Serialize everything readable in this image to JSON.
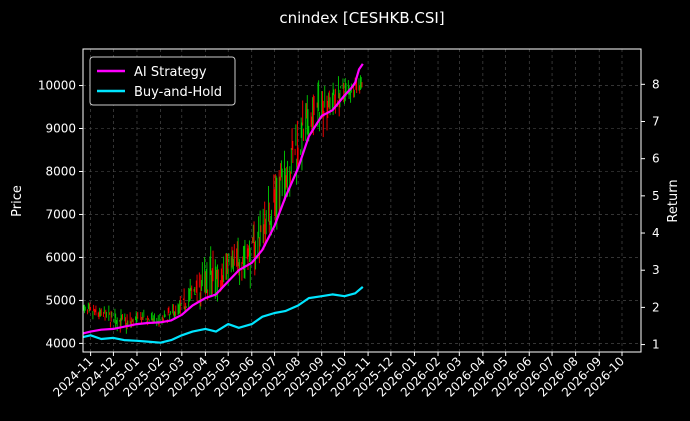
{
  "chart_data": {
    "type": "line",
    "title": "cnindex [CESHKB.CSI]",
    "ylabel_left": "Price",
    "ylabel_right": "Return",
    "xlabel": "",
    "grid": true,
    "legend_position": "top-left",
    "ylim_left": [
      3800,
      10850
    ],
    "ylim_right": [
      0.8,
      8.95
    ],
    "y_ticks_left": [
      4000,
      5000,
      6000,
      7000,
      8000,
      9000,
      10000
    ],
    "y_ticks_right": [
      1,
      2,
      3,
      4,
      5,
      6,
      7,
      8
    ],
    "x_ticks": [
      "2024-11",
      "2024-12",
      "2025-01",
      "2025-02",
      "2025-03",
      "2025-04",
      "2025-05",
      "2025-06",
      "2025-07",
      "2025-08",
      "2025-09",
      "2025-10",
      "2025-11",
      "2025-12",
      "2026-01",
      "2026-02",
      "2026-03",
      "2026-04",
      "2026-05",
      "2026-06",
      "2026-07",
      "2026-08",
      "2026-09",
      "2026-10"
    ],
    "xlim": [
      "2024-10-22",
      "2026-10-26"
    ],
    "series": [
      {
        "name": "AI Strategy",
        "color": "#ff00ff",
        "axis": "right",
        "points": [
          [
            "2024-10-22",
            1.3
          ],
          [
            "2024-11-01",
            1.35
          ],
          [
            "2024-11-15",
            1.4
          ],
          [
            "2024-12-01",
            1.42
          ],
          [
            "2024-12-15",
            1.48
          ],
          [
            "2025-01-01",
            1.55
          ],
          [
            "2025-01-15",
            1.58
          ],
          [
            "2025-02-01",
            1.6
          ],
          [
            "2025-02-15",
            1.65
          ],
          [
            "2025-03-01",
            1.8
          ],
          [
            "2025-03-15",
            2.05
          ],
          [
            "2025-04-01",
            2.25
          ],
          [
            "2025-04-15",
            2.35
          ],
          [
            "2025-05-01",
            2.7
          ],
          [
            "2025-05-15",
            3.0
          ],
          [
            "2025-06-01",
            3.2
          ],
          [
            "2025-06-15",
            3.55
          ],
          [
            "2025-07-01",
            4.2
          ],
          [
            "2025-07-15",
            4.95
          ],
          [
            "2025-08-01",
            5.75
          ],
          [
            "2025-08-15",
            6.6
          ],
          [
            "2025-09-01",
            7.15
          ],
          [
            "2025-09-15",
            7.3
          ],
          [
            "2025-10-01",
            7.7
          ],
          [
            "2025-10-10",
            7.9
          ],
          [
            "2025-10-15",
            8.05
          ],
          [
            "2025-10-20",
            8.4
          ],
          [
            "2025-10-25",
            8.55
          ]
        ]
      },
      {
        "name": "Buy-and-Hold",
        "color": "#00e5ff",
        "axis": "right",
        "points": [
          [
            "2024-10-22",
            1.2
          ],
          [
            "2024-11-01",
            1.25
          ],
          [
            "2024-11-15",
            1.15
          ],
          [
            "2024-12-01",
            1.18
          ],
          [
            "2024-12-15",
            1.12
          ],
          [
            "2025-01-01",
            1.1
          ],
          [
            "2025-01-15",
            1.08
          ],
          [
            "2025-02-01",
            1.05
          ],
          [
            "2025-02-15",
            1.12
          ],
          [
            "2025-03-01",
            1.25
          ],
          [
            "2025-03-15",
            1.35
          ],
          [
            "2025-04-01",
            1.42
          ],
          [
            "2025-04-15",
            1.35
          ],
          [
            "2025-05-01",
            1.55
          ],
          [
            "2025-05-15",
            1.45
          ],
          [
            "2025-06-01",
            1.55
          ],
          [
            "2025-06-15",
            1.75
          ],
          [
            "2025-07-01",
            1.85
          ],
          [
            "2025-07-15",
            1.9
          ],
          [
            "2025-08-01",
            2.05
          ],
          [
            "2025-08-15",
            2.25
          ],
          [
            "2025-09-01",
            2.3
          ],
          [
            "2025-09-15",
            2.35
          ],
          [
            "2025-10-01",
            2.3
          ],
          [
            "2025-10-15",
            2.38
          ],
          [
            "2025-10-25",
            2.55
          ]
        ]
      }
    ],
    "price_candles": {
      "axis": "left",
      "up_color": "#00cc00",
      "down_color": "#ff0000",
      "envelope": [
        [
          "2024-10-22",
          4550,
          5000
        ],
        [
          "2024-11-15",
          4450,
          4900
        ],
        [
          "2024-12-01",
          4250,
          4900
        ],
        [
          "2024-12-20",
          4200,
          4750
        ],
        [
          "2025-01-10",
          4350,
          4800
        ],
        [
          "2025-02-01",
          4350,
          4700
        ],
        [
          "2025-03-01",
          4500,
          5200
        ],
        [
          "2025-03-20",
          4800,
          5800
        ],
        [
          "2025-04-10",
          4500,
          6450
        ],
        [
          "2025-05-01",
          5300,
          6300
        ],
        [
          "2025-06-01",
          5300,
          6900
        ],
        [
          "2025-07-01",
          6400,
          8200
        ],
        [
          "2025-08-01",
          7600,
          9700
        ],
        [
          "2025-09-01",
          8800,
          10300
        ],
        [
          "2025-10-01",
          9400,
          10300
        ],
        [
          "2025-10-25",
          9800,
          10400
        ]
      ]
    }
  }
}
